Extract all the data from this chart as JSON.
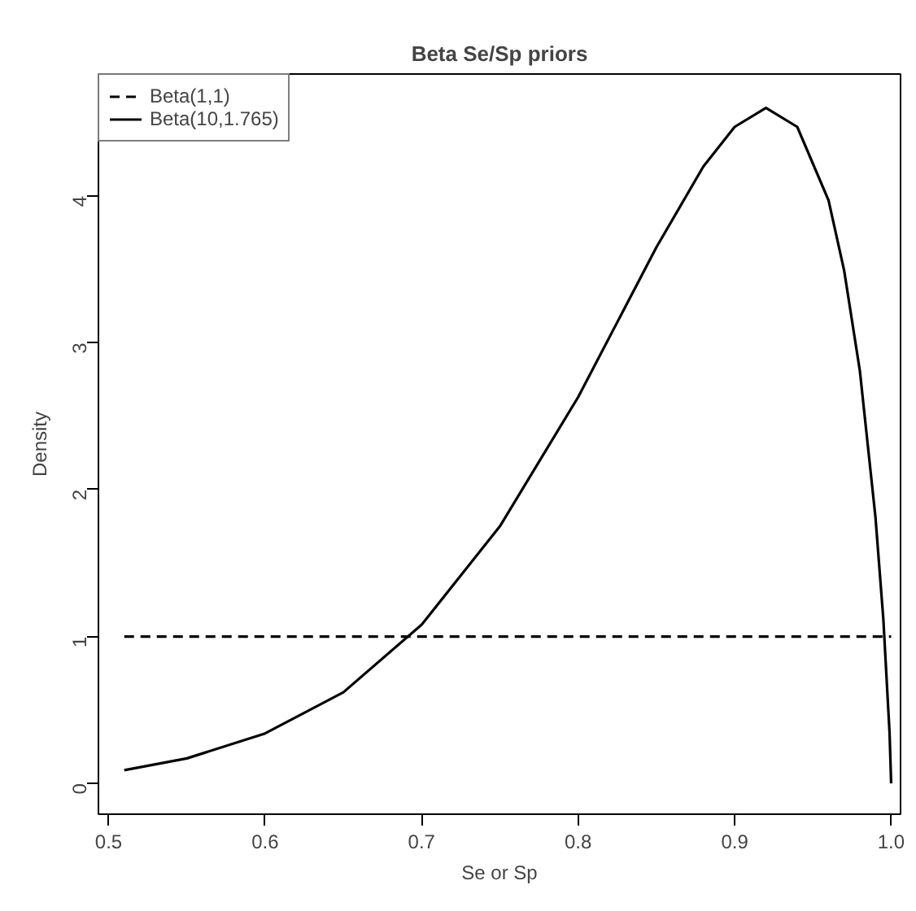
{
  "chart_data": {
    "type": "line",
    "title": "Beta Se/Sp priors",
    "xlabel": "Se or Sp",
    "ylabel": "Density",
    "xlim": [
      0.4935,
      1.006
    ],
    "ylim": [
      -0.21,
      4.83
    ],
    "xticks": [
      0.5,
      0.6,
      0.7,
      0.8,
      0.9,
      {
        "value": 1.0,
        "label": "1.0"
      }
    ],
    "yticks": [
      0,
      1,
      2,
      3,
      4
    ],
    "legend": "top left",
    "grid": false,
    "series": [
      {
        "name": "Beta(1,1)",
        "color": "#000000",
        "line_style": "dashed",
        "x": [
          0.51,
          1.0
        ],
        "values": [
          1,
          1
        ]
      },
      {
        "name": "Beta(10,1.765)",
        "color": "#000000",
        "line_style": "solid",
        "x": [
          0.51,
          0.55,
          0.6,
          0.65,
          0.7,
          0.75,
          0.8,
          0.85,
          0.88,
          0.9,
          0.92,
          0.94,
          0.96,
          0.97,
          0.98,
          0.99,
          0.995,
          0.999,
          1.0
        ],
        "values": [
          0.09,
          0.17,
          0.34,
          0.62,
          1.08,
          1.75,
          2.63,
          3.65,
          4.2,
          4.47,
          4.6,
          4.47,
          3.97,
          3.49,
          2.81,
          1.81,
          1.12,
          0.34,
          0
        ]
      }
    ]
  }
}
